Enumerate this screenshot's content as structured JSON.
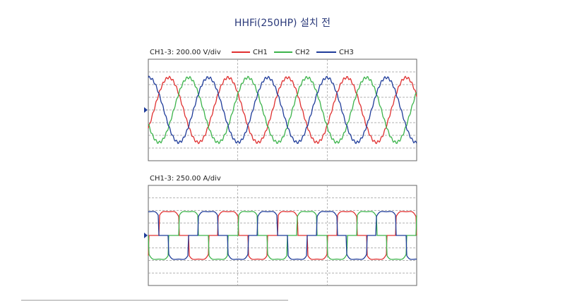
{
  "title": "HHFi(250HP) 설치 전",
  "panels": [
    {
      "scale_label": "CH1-3: 200.00 V/div",
      "legend": [
        "CH1",
        "CH2",
        "CH3"
      ]
    },
    {
      "scale_label": "CH1-3: 250.00 A/div"
    }
  ]
}
